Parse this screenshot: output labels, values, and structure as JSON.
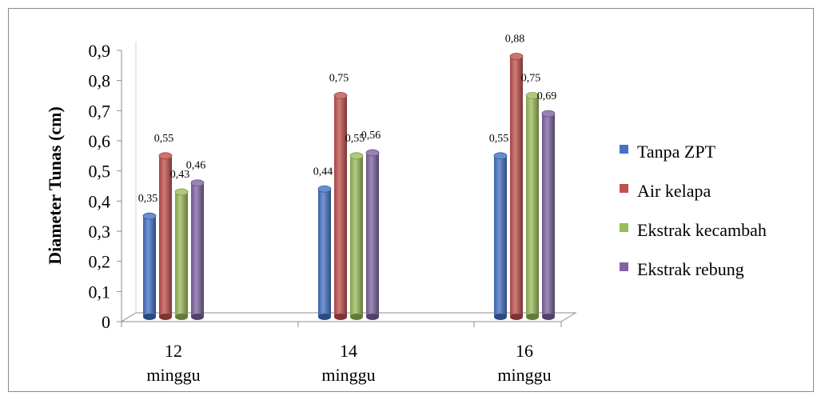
{
  "chart_data": {
    "type": "bar",
    "title": "",
    "xlabel": "",
    "ylabel": "Diameter Tunas (cm)",
    "ylim": [
      0,
      0.9
    ],
    "yticks": [
      "0",
      "0,1",
      "0,2",
      "0,3",
      "0,4",
      "0,5",
      "0,6",
      "0,7",
      "0,8",
      "0,9"
    ],
    "categories": [
      {
        "line1": "12",
        "line2": "minggu"
      },
      {
        "line1": "14",
        "line2": "minggu"
      },
      {
        "line1": "16",
        "line2": "minggu"
      }
    ],
    "series": [
      {
        "name": "Tanpa ZPT",
        "color": "#4472c4",
        "values": [
          0.35,
          0.44,
          0.55
        ],
        "labels": [
          "0,35",
          "0,44",
          "0,55"
        ]
      },
      {
        "name": "Air kelapa",
        "color": "#c0504d",
        "values": [
          0.55,
          0.75,
          0.88
        ],
        "labels": [
          "0,55",
          "0,75",
          "0,88"
        ]
      },
      {
        "name": "Ekstrak kecambah",
        "color": "#9bbb59",
        "values": [
          0.43,
          0.55,
          0.75
        ],
        "labels": [
          "0,43",
          "0,55",
          "0,75"
        ]
      },
      {
        "name": "Ekstrak rebung",
        "color": "#8064a2",
        "values": [
          0.46,
          0.56,
          0.69
        ],
        "labels": [
          "0,46",
          "0,56",
          "0,69"
        ]
      }
    ],
    "grid": false,
    "legend_position": "right",
    "style": "3d-cylinder"
  }
}
